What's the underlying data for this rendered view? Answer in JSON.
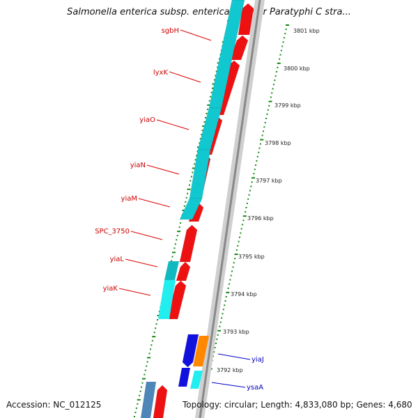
{
  "title": "Salmonella enterica subsp. enterica serovar Paratyphi C stra...",
  "footer": {
    "accession": "Accession: NC_012125",
    "summary": "Topology: circular; Length: 4,833,080 bp; Genes: 4,680"
  },
  "colors": {
    "forward_gene": "#ee1111",
    "reverse_gene": "#11c8d0",
    "forward_alt": "#ff8800",
    "reverse_alt": "#1111dd",
    "label_forward": "#cc0000",
    "label_reverse": "#0000bb",
    "tick": "#118811",
    "backbone": "#888888"
  },
  "gene_labels": [
    {
      "name": "sgbH",
      "strand": "red"
    },
    {
      "name": "lyxK",
      "strand": "red"
    },
    {
      "name": "yiaO",
      "strand": "red"
    },
    {
      "name": "yiaN",
      "strand": "red"
    },
    {
      "name": "yiaM",
      "strand": "red"
    },
    {
      "name": "SPC_3750",
      "strand": "red"
    },
    {
      "name": "yiaL",
      "strand": "red"
    },
    {
      "name": "yiaK",
      "strand": "red"
    },
    {
      "name": "yiaJ",
      "strand": "blue"
    },
    {
      "name": "ysaA",
      "strand": "blue"
    }
  ],
  "kbp_labels": [
    "3801 kbp",
    "3800 kbp",
    "3799 kbp",
    "3798 kbp",
    "3797 kbp",
    "3796 kbp",
    "3795 kbp",
    "3794 kbp",
    "3793 kbp",
    "3792 kbp"
  ]
}
